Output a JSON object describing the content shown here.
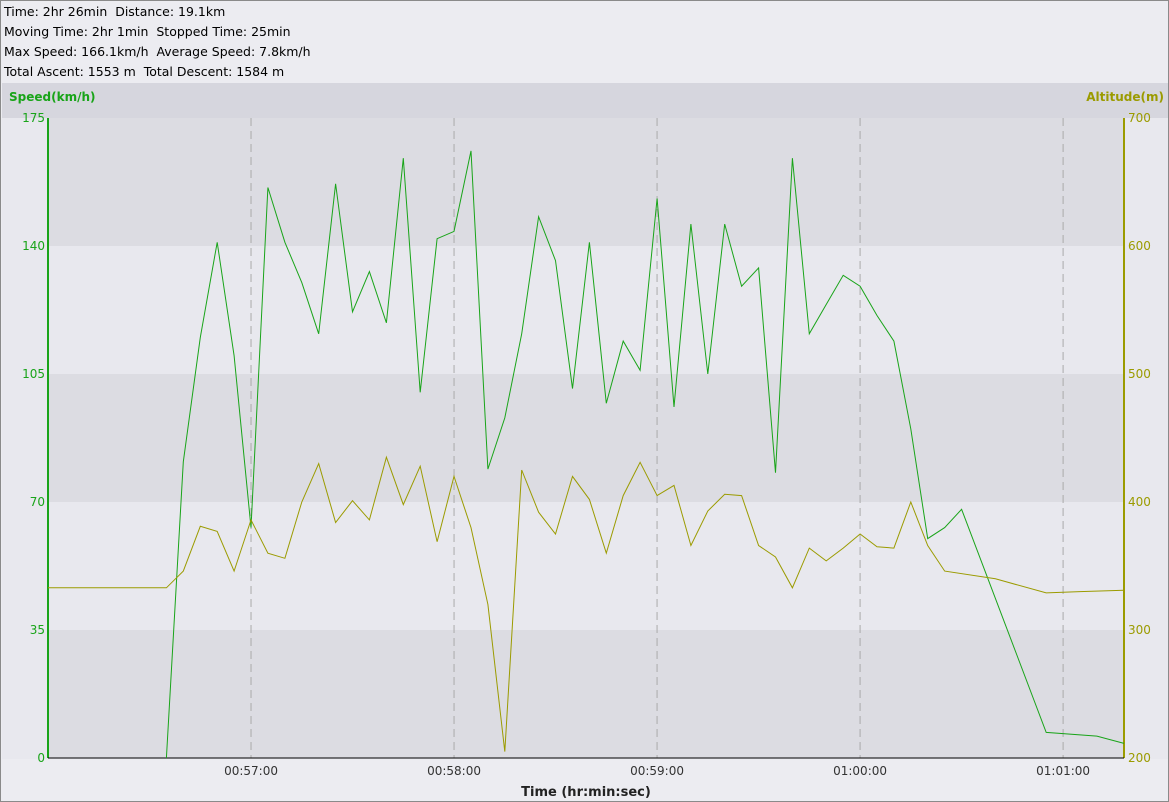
{
  "summary": {
    "line1": "Time: 2hr 26min  Distance: 19.1km",
    "line2": "Moving Time: 2hr 1min  Stopped Time: 25min",
    "line3": "Max Speed: 166.1km/h  Average Speed: 7.8km/h",
    "line4": "Total Ascent: 1553 m  Total Descent: 1584 m"
  },
  "colors": {
    "speed": "#19a419",
    "altitude": "#9b9b00",
    "band_dark": "#dcdce2",
    "band_light": "#e8e8ee",
    "top_band": "#d6d6de",
    "grid_dash": "#aaaaaa"
  },
  "chart_data": {
    "type": "line",
    "xlabel": "Time (hr:min:sec)",
    "ylabel_left": "Speed(km/h)",
    "ylabel_right": "Altitude(m)",
    "x_range_seconds": [
      3360,
      3678
    ],
    "x_ticks": [
      {
        "label": "00:57:00",
        "seconds": 3420
      },
      {
        "label": "00:58:00",
        "seconds": 3480
      },
      {
        "label": "00:59:00",
        "seconds": 3540
      },
      {
        "label": "01:00:00",
        "seconds": 3600
      },
      {
        "label": "01:01:00",
        "seconds": 3660
      }
    ],
    "y_left": {
      "min": 0,
      "max": 175,
      "ticks": [
        0,
        35,
        70,
        105,
        140,
        175
      ]
    },
    "y_right": {
      "min": 200,
      "max": 700,
      "ticks": [
        200,
        300,
        400,
        500,
        600,
        700
      ]
    },
    "series": [
      {
        "name": "Speed",
        "axis": "left",
        "points": [
          [
            3395,
            0
          ],
          [
            3400,
            81
          ],
          [
            3405,
            115
          ],
          [
            3410,
            141
          ],
          [
            3415,
            110
          ],
          [
            3420,
            63
          ],
          [
            3425,
            156
          ],
          [
            3430,
            141
          ],
          [
            3435,
            130
          ],
          [
            3440,
            116
          ],
          [
            3445,
            157
          ],
          [
            3450,
            122
          ],
          [
            3455,
            133
          ],
          [
            3460,
            119
          ],
          [
            3465,
            164
          ],
          [
            3470,
            100
          ],
          [
            3475,
            142
          ],
          [
            3480,
            144
          ],
          [
            3485,
            166
          ],
          [
            3490,
            79
          ],
          [
            3495,
            93
          ],
          [
            3500,
            116
          ],
          [
            3505,
            148
          ],
          [
            3510,
            136
          ],
          [
            3515,
            101
          ],
          [
            3520,
            141
          ],
          [
            3525,
            97
          ],
          [
            3530,
            114
          ],
          [
            3535,
            106
          ],
          [
            3540,
            153
          ],
          [
            3545,
            96
          ],
          [
            3550,
            146
          ],
          [
            3555,
            105
          ],
          [
            3560,
            146
          ],
          [
            3565,
            129
          ],
          [
            3570,
            134
          ],
          [
            3575,
            78
          ],
          [
            3580,
            164
          ],
          [
            3585,
            116
          ],
          [
            3590,
            124
          ],
          [
            3595,
            132
          ],
          [
            3600,
            129
          ],
          [
            3605,
            121
          ],
          [
            3610,
            114
          ],
          [
            3615,
            90
          ],
          [
            3620,
            60
          ],
          [
            3625,
            63
          ],
          [
            3630,
            68
          ],
          [
            3655,
            7
          ],
          [
            3670,
            6
          ],
          [
            3678,
            4
          ]
        ]
      },
      {
        "name": "Altitude",
        "axis": "right",
        "points": [
          [
            3360,
            333
          ],
          [
            3395,
            333
          ],
          [
            3400,
            346
          ],
          [
            3405,
            381
          ],
          [
            3410,
            377
          ],
          [
            3415,
            346
          ],
          [
            3420,
            386
          ],
          [
            3425,
            360
          ],
          [
            3430,
            356
          ],
          [
            3435,
            400
          ],
          [
            3440,
            430
          ],
          [
            3445,
            384
          ],
          [
            3450,
            401
          ],
          [
            3455,
            386
          ],
          [
            3460,
            435
          ],
          [
            3465,
            398
          ],
          [
            3470,
            428
          ],
          [
            3475,
            369
          ],
          [
            3480,
            420
          ],
          [
            3485,
            380
          ],
          [
            3490,
            320
          ],
          [
            3495,
            205
          ],
          [
            3500,
            425
          ],
          [
            3505,
            392
          ],
          [
            3510,
            375
          ],
          [
            3515,
            420
          ],
          [
            3520,
            402
          ],
          [
            3525,
            360
          ],
          [
            3530,
            405
          ],
          [
            3535,
            431
          ],
          [
            3540,
            405
          ],
          [
            3545,
            413
          ],
          [
            3550,
            366
          ],
          [
            3555,
            393
          ],
          [
            3560,
            406
          ],
          [
            3565,
            405
          ],
          [
            3570,
            366
          ],
          [
            3575,
            357
          ],
          [
            3580,
            333
          ],
          [
            3585,
            364
          ],
          [
            3590,
            354
          ],
          [
            3595,
            364
          ],
          [
            3600,
            375
          ],
          [
            3605,
            365
          ],
          [
            3610,
            364
          ],
          [
            3615,
            400
          ],
          [
            3620,
            366
          ],
          [
            3625,
            346
          ],
          [
            3640,
            340
          ],
          [
            3655,
            329
          ],
          [
            3665,
            330
          ],
          [
            3678,
            331
          ]
        ]
      }
    ]
  }
}
